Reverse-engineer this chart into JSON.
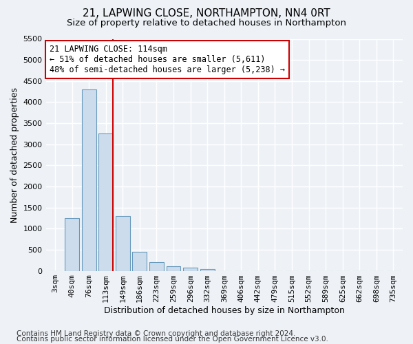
{
  "title1": "21, LAPWING CLOSE, NORTHAMPTON, NN4 0RT",
  "title2": "Size of property relative to detached houses in Northampton",
  "xlabel": "Distribution of detached houses by size in Northampton",
  "ylabel": "Number of detached properties",
  "categories": [
    "3sqm",
    "40sqm",
    "76sqm",
    "113sqm",
    "149sqm",
    "186sqm",
    "223sqm",
    "259sqm",
    "296sqm",
    "332sqm",
    "369sqm",
    "406sqm",
    "442sqm",
    "479sqm",
    "515sqm",
    "552sqm",
    "589sqm",
    "625sqm",
    "662sqm",
    "698sqm",
    "735sqm"
  ],
  "values": [
    0,
    1250,
    4300,
    3250,
    1300,
    450,
    200,
    100,
    75,
    50,
    0,
    0,
    0,
    0,
    0,
    0,
    0,
    0,
    0,
    0,
    0
  ],
  "bar_color": "#ccdcec",
  "bar_edge_color": "#6699bb",
  "highlight_index": 3,
  "red_line_color": "#cc0000",
  "annotation_line1": "21 LAPWING CLOSE: 114sqm",
  "annotation_line2": "← 51% of detached houses are smaller (5,611)",
  "annotation_line3": "48% of semi-detached houses are larger (5,238) →",
  "annotation_box_color": "#ffffff",
  "annotation_box_edge": "#cc0000",
  "ylim": [
    0,
    5500
  ],
  "yticks": [
    0,
    500,
    1000,
    1500,
    2000,
    2500,
    3000,
    3500,
    4000,
    4500,
    5000,
    5500
  ],
  "footer1": "Contains HM Land Registry data © Crown copyright and database right 2024.",
  "footer2": "Contains public sector information licensed under the Open Government Licence v3.0.",
  "bg_color": "#eef2f7",
  "plot_bg_color": "#eef2f7",
  "grid_color": "#ffffff",
  "title1_fontsize": 11,
  "title2_fontsize": 9.5,
  "axis_label_fontsize": 9,
  "tick_fontsize": 8,
  "annotation_fontsize": 8.5,
  "footer_fontsize": 7.5
}
